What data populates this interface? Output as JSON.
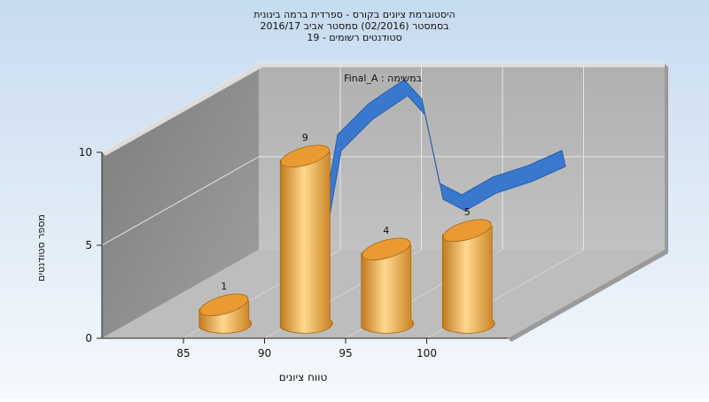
{
  "chart_data": {
    "type": "bar",
    "title_lines": [
      "היסטוגרמת ציונים בקורס - ספרדית ברמה בינונית",
      "בסמסטר  (02/2016)  סמסטר אביב 2016/17",
      "סטודנטים רשומים - 19"
    ],
    "xlabel": "טווח ציונים",
    "ylabel": "מספר סטודנטים",
    "x_ticks": [
      "85",
      "90",
      "95",
      "100"
    ],
    "y_ticks": [
      "0",
      "5",
      "10"
    ],
    "ylim": [
      0,
      10
    ],
    "bars": [
      {
        "x": 87.5,
        "value": 1,
        "label": "1"
      },
      {
        "x": 92.5,
        "value": 9,
        "label": "9"
      },
      {
        "x": 97.5,
        "value": 4,
        "label": "4"
      },
      {
        "x": 102.5,
        "value": 5,
        "label": "5"
      }
    ],
    "series_label": "Final_A : במשימה",
    "curve": {
      "name": "Final_A",
      "type": "area"
    },
    "colors": {
      "bar": "#f0a845",
      "curve": "#3a78d0",
      "background_top": "#c8dcf0",
      "background_bottom": "#f4f8fc",
      "wall_back": "#b4b4b4",
      "wall_left": "#8e8e8e",
      "floor": "#bcbcbc"
    },
    "grid": true,
    "legend": "top"
  }
}
